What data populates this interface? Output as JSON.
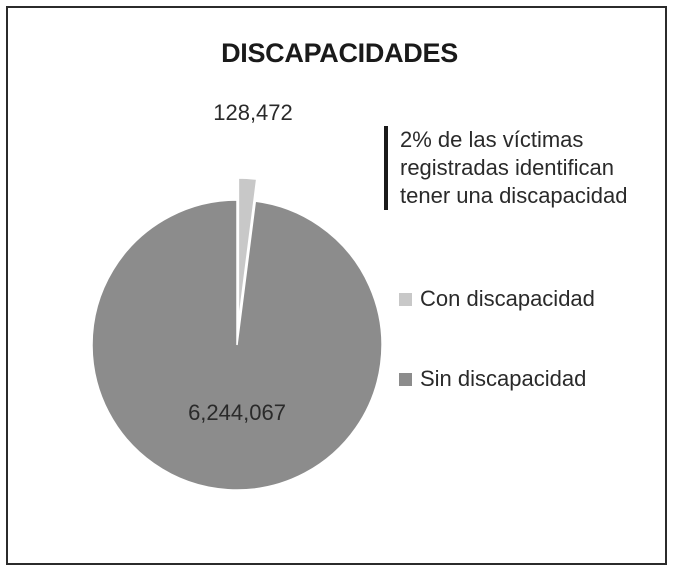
{
  "chart_data": {
    "type": "pie",
    "title": "DISCAPACIDADES",
    "slices": [
      {
        "label": "Con discapacidad",
        "value": 128472,
        "value_label": "128,472",
        "color": "#c8c8c8"
      },
      {
        "label": "Sin discapacidad",
        "value": 6244067,
        "value_label": "6,244,067",
        "color": "#8c8c8c"
      }
    ],
    "annotation": [
      "2% de las víctimas",
      "registradas identifican",
      "tener una discapacidad"
    ],
    "legend_position": "right"
  }
}
